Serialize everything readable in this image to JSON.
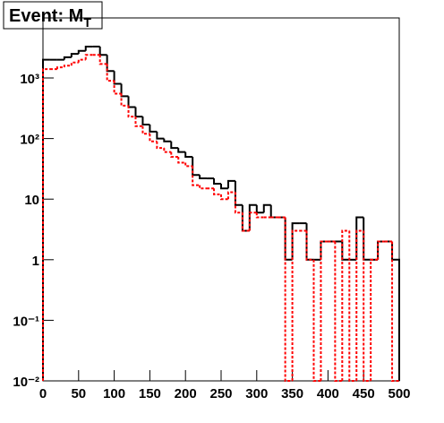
{
  "chart_data": {
    "type": "histogram",
    "title": "Event: M",
    "title_subscript": "T",
    "bins": [
      0,
      10,
      20,
      30,
      40,
      50,
      60,
      70,
      80,
      90,
      100,
      110,
      120,
      130,
      140,
      150,
      160,
      170,
      180,
      190,
      200,
      210,
      220,
      230,
      240,
      250,
      260,
      270,
      280,
      290,
      300,
      310,
      320,
      330,
      340,
      350,
      360,
      370,
      380,
      390,
      400,
      410,
      420,
      430,
      440,
      450,
      460,
      470,
      480,
      490,
      500
    ],
    "series": [
      {
        "color": "#000000",
        "dash": false,
        "values": [
          2000,
          2000,
          2000,
          2200,
          2500,
          2800,
          3300,
          3300,
          2400,
          1300,
          800,
          500,
          330,
          230,
          170,
          130,
          100,
          90,
          70,
          60,
          50,
          25,
          22,
          22,
          18,
          15,
          20,
          8,
          3,
          8,
          6,
          8,
          5,
          5,
          1,
          4,
          4,
          1,
          1,
          2,
          2,
          2,
          1,
          1,
          5,
          1,
          1,
          2,
          2,
          1
        ]
      },
      {
        "color": "#ff0000",
        "dash": true,
        "values": [
          1400,
          1400,
          1500,
          1600,
          1800,
          2000,
          2400,
          2400,
          1700,
          900,
          550,
          350,
          230,
          160,
          120,
          90,
          70,
          60,
          50,
          40,
          35,
          17,
          15,
          15,
          12,
          10,
          13,
          6,
          3,
          6,
          5,
          5,
          5,
          5,
          0,
          3,
          3,
          1,
          0,
          2,
          2,
          0,
          3,
          0,
          3,
          0,
          1,
          2,
          2,
          0
        ]
      }
    ],
    "xlim": [
      0,
      500
    ],
    "xticks": [
      0,
      50,
      100,
      150,
      200,
      250,
      300,
      350,
      400,
      450,
      500
    ],
    "ylim": [
      0.01,
      9800
    ],
    "log_y": true,
    "yticks": [
      {
        "value": 0.01,
        "label": "10⁻²"
      },
      {
        "value": 0.1,
        "label": "10⁻¹"
      },
      1,
      10,
      {
        "value": 100,
        "label": "10²"
      },
      {
        "value": 1000,
        "label": "10³"
      }
    ]
  }
}
